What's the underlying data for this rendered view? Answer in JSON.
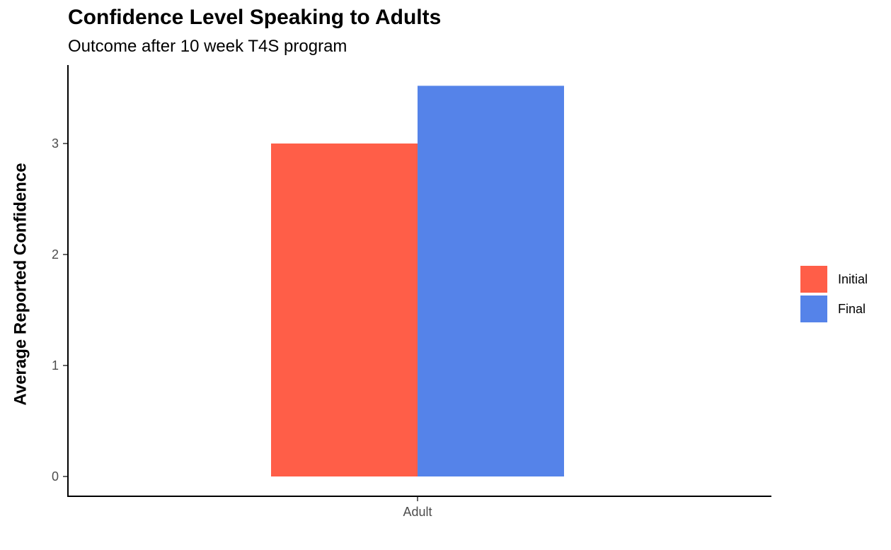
{
  "chart_data": {
    "type": "bar",
    "title": "Confidence Level Speaking to Adults",
    "subtitle": "Outcome after 10 week T4S program",
    "xlabel": "",
    "ylabel": "Average Reported Confidence",
    "categories": [
      "Adult"
    ],
    "series": [
      {
        "name": "Initial",
        "values": [
          3.0
        ],
        "color": "#FF5E48"
      },
      {
        "name": "Final",
        "values": [
          3.52
        ],
        "color": "#5583E9"
      }
    ],
    "ylim": [
      0,
      3.7
    ],
    "yticks": [
      "0",
      "1",
      "2",
      "3"
    ],
    "grid": false,
    "legend_position": "right"
  }
}
